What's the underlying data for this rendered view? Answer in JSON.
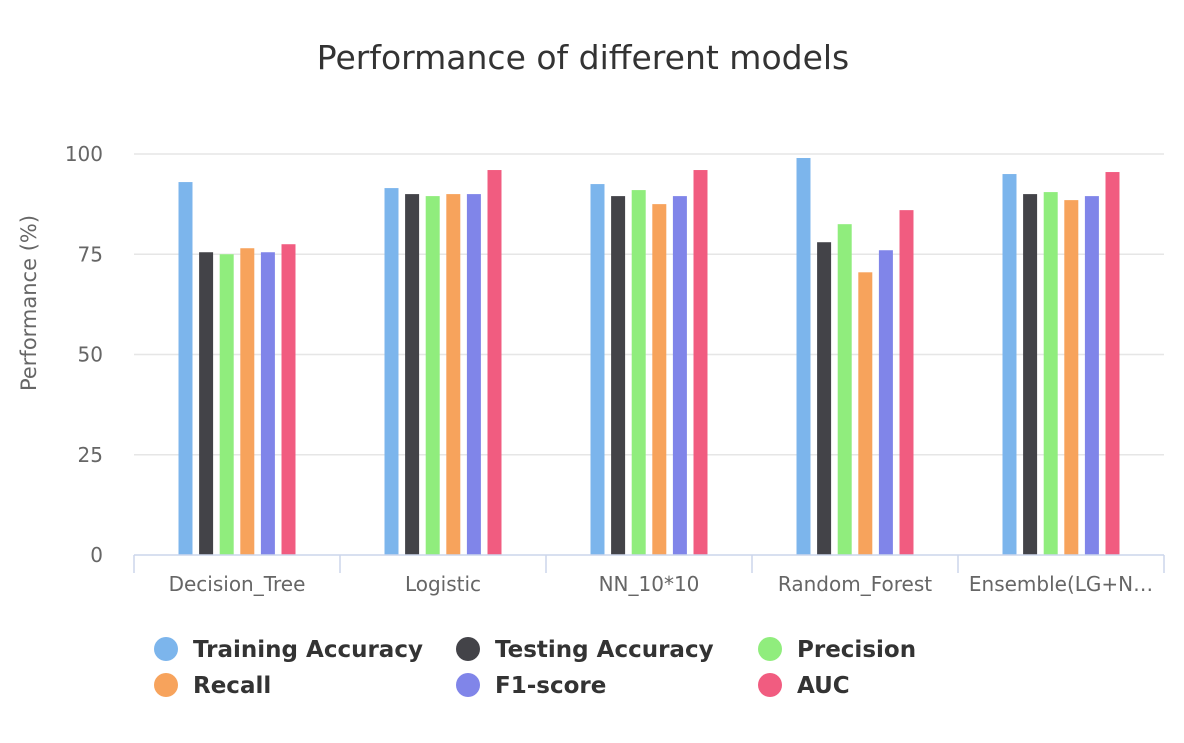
{
  "chart_data": {
    "type": "bar",
    "title": "Performance of different models",
    "ylabel": "Performance (%)",
    "xlabel": "",
    "ylim": [
      0,
      100
    ],
    "yticks": [
      0,
      25,
      50,
      75,
      100
    ],
    "grid": true,
    "legend_position": "bottom",
    "categories": [
      "Decision_Tree",
      "Logistic",
      "NN_10*10",
      "Random_Forest",
      "Ensemble(LG+N…"
    ],
    "series": [
      {
        "name": "Training Accuracy",
        "color": "#7cb5ec",
        "values": [
          93,
          91.5,
          92.5,
          99,
          95
        ]
      },
      {
        "name": "Testing Accuracy",
        "color": "#434348",
        "values": [
          75.5,
          90,
          89.5,
          78,
          90
        ]
      },
      {
        "name": "Precision",
        "color": "#90ed7d",
        "values": [
          75,
          89.5,
          91,
          82.5,
          90.5
        ]
      },
      {
        "name": "Recall",
        "color": "#f7a35c",
        "values": [
          76.5,
          90,
          87.5,
          70.5,
          88.5
        ]
      },
      {
        "name": "F1-score",
        "color": "#8085e9",
        "values": [
          75.5,
          90,
          89.5,
          76,
          89.5
        ]
      },
      {
        "name": "AUC",
        "color": "#f15c80",
        "values": [
          77.5,
          96,
          96,
          86,
          95.5
        ]
      }
    ]
  }
}
